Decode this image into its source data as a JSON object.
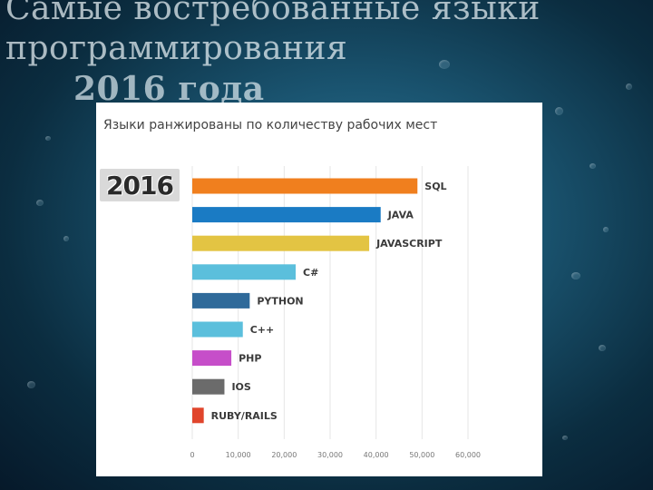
{
  "slide": {
    "title_line1": "Самые востребованные языки",
    "title_line2": "программирования",
    "title_line3": "2016 года"
  },
  "badge": {
    "text": "2016"
  },
  "chart_data": {
    "type": "bar",
    "orientation": "horizontal",
    "title": "Языки ранжированы по количеству рабочих мест",
    "categories": [
      "SQL",
      "JAVA",
      "JAVASCRIPT",
      "C#",
      "PYTHON",
      "C++",
      "PHP",
      "IOS",
      "RUBY/RAILS"
    ],
    "values": [
      49000,
      41000,
      38500,
      22500,
      12500,
      11000,
      8500,
      7000,
      2500
    ],
    "colors": [
      "#f07f1e",
      "#1a7bc4",
      "#e3c443",
      "#5bbfdc",
      "#2f6a9a",
      "#5bbfdc",
      "#c64ec9",
      "#6b6b6b",
      "#e0452c"
    ],
    "xlim": [
      0,
      60000
    ],
    "xticks": [
      "0",
      "10,000",
      "20,000",
      "30,000",
      "40,000",
      "50,000",
      "60,000"
    ],
    "grid": true
  }
}
